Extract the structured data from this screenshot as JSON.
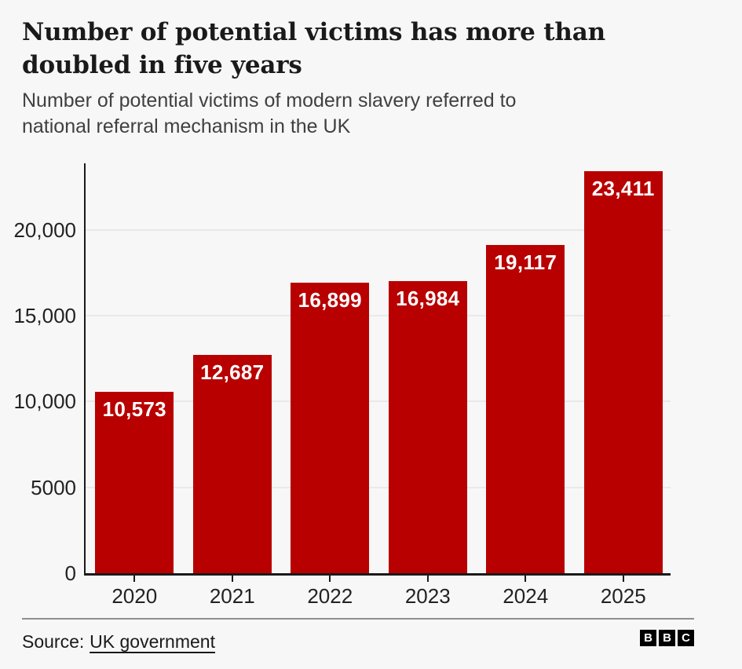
{
  "header": {
    "title_lines": [
      "Number of potential victims has more than",
      "doubled in five years"
    ],
    "subtitle_lines": [
      "Number of potential victims of modern slavery referred to",
      "national referral mechanism in the UK"
    ]
  },
  "chart_data": {
    "type": "bar",
    "title": "Number of potential victims has more than doubled in five years",
    "subtitle": "Number of potential victims of modern slavery referred to national referral mechanism in the UK",
    "categories": [
      "2020",
      "2021",
      "2022",
      "2023",
      "2024",
      "2025"
    ],
    "values": [
      10573,
      12687,
      16899,
      16984,
      19117,
      23411
    ],
    "value_labels": [
      "10,573",
      "12,687",
      "16,899",
      "16,984",
      "19,117",
      "23,411"
    ],
    "xlabel": "",
    "ylabel": "",
    "ylim": [
      0,
      24000
    ],
    "yticks": [
      {
        "value": 0,
        "label": "0"
      },
      {
        "value": 5000,
        "label": "5000"
      },
      {
        "value": 10000,
        "label": "10,000"
      },
      {
        "value": 15000,
        "label": "15,000"
      },
      {
        "value": 20000,
        "label": "20,000"
      }
    ],
    "grid": true,
    "legend": null
  },
  "footer": {
    "source_prefix": "Source:",
    "source_link": "UK government",
    "logo_letters": [
      "B",
      "B",
      "C"
    ]
  },
  "colors": {
    "bar": "#b80000",
    "background": "#f7f7f7",
    "grid": "#e9e9e9",
    "axis": "#1a1a1a",
    "axis_label": "#222222",
    "title": "#1a1a1a",
    "subtitle": "#404040",
    "value_label": "#ffffff",
    "divider": "#8f8f8f",
    "logo_bg": "#000000",
    "logo_fg": "#ffffff"
  }
}
